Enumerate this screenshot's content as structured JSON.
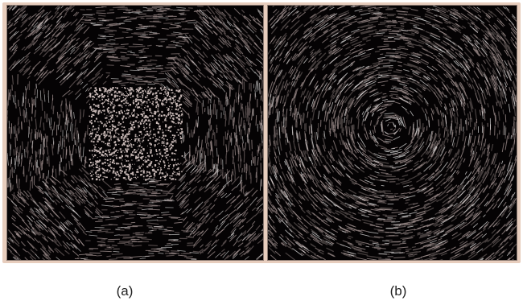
{
  "figure": {
    "panels": [
      {
        "id": "a",
        "caption": "(a)",
        "pattern": "octagonal-flow-texture-with-noise-center"
      },
      {
        "id": "b",
        "caption": "(b)",
        "pattern": "circular-vortex-flow-texture"
      }
    ],
    "colors": {
      "background": "#050304",
      "streak": "#dcc7c4",
      "frame": "#e7cdbd"
    }
  }
}
